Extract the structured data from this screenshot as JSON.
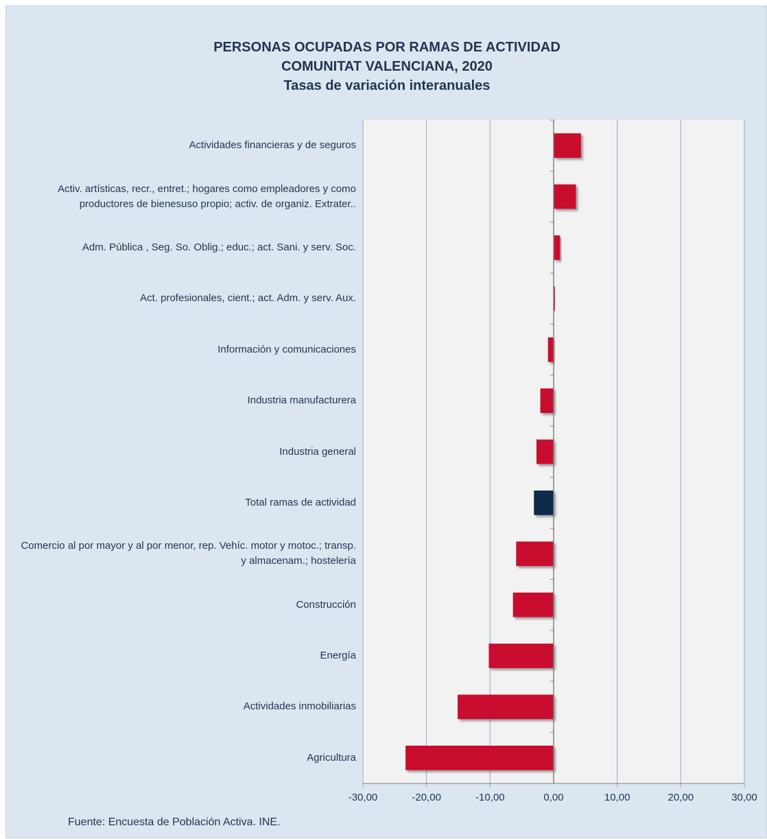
{
  "chart_data": {
    "type": "bar",
    "orientation": "horizontal",
    "title": "PERSONAS OCUPADAS POR RAMAS DE ACTIVIDAD",
    "subtitle": "COMUNITAT VALENCIANA, 2020",
    "subtitle2": "Tasas de variación interanuales",
    "xlim": [
      -30,
      30
    ],
    "x_ticks": [
      "-30,00",
      "-20,00",
      "-10,00",
      "0,00",
      "10,00",
      "20,00",
      "30,00"
    ],
    "grid": "vertical",
    "categories": [
      "Actividades financieras y de seguros",
      "Activ. artísticas, recr., entret.; hogares como empleadores  y como productores de bienesuso propio; activ. de organiz. Extrater..",
      "Adm. Pública , Seg. So. Oblig.; educ.; act. Sani. y serv. Soc.",
      "Act. profesionales, cient.; act. Adm. y serv. Aux.",
      "Información y comunicaciones",
      "Industria manufacturera",
      "Industria general",
      "Total ramas de actividad",
      "Comercio al por mayor y al por menor, rep. Vehíc. motor y motoc.; transp. y almacenam.; hostelería",
      "Construcción",
      "Energía",
      "Actividades inmobiliarias",
      "Agricultura"
    ],
    "values": [
      4.3,
      3.5,
      1.0,
      0.2,
      -0.9,
      -2.1,
      -2.7,
      -3.1,
      -5.9,
      -6.4,
      -10.2,
      -15.1,
      -23.3
    ],
    "colors": {
      "default": "#c8102e",
      "total": "#0b2a48",
      "plot_background": "#f2f2f2",
      "grid": "#8ea9c8"
    }
  },
  "source": "Fuente: Encuesta de Población Activa. INE."
}
